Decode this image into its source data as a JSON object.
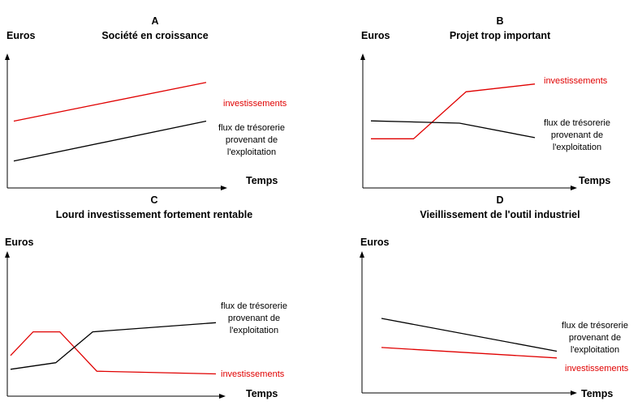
{
  "chart_data": [
    {
      "type": "line",
      "panel_letter": "A",
      "title": "Société en croissance",
      "ylabel": "Euros",
      "xlabel": "Temps",
      "series": [
        {
          "name": "investissements",
          "color": "#e00000",
          "x": [
            0,
            1
          ],
          "y": [
            0.62,
            0.98
          ]
        },
        {
          "name": "flux de trésorerie provenant de l'exploitation",
          "color": "#000000",
          "x": [
            0,
            1
          ],
          "y": [
            0.25,
            0.62
          ]
        }
      ],
      "labels": {
        "investissements": [
          "investissements"
        ],
        "flux": [
          "flux de trésorerie",
          "provenant de",
          "l'exploitation"
        ]
      }
    },
    {
      "type": "line",
      "panel_letter": "B",
      "title": "Projet trop important",
      "ylabel": "Euros",
      "xlabel": "Temps",
      "series": [
        {
          "name": "investissements",
          "color": "#e00000",
          "x": [
            0,
            0.26,
            0.58,
            1
          ],
          "y": [
            0.44,
            0.44,
            0.86,
            0.93
          ]
        },
        {
          "name": "flux de trésorerie provenant de l'exploitation",
          "color": "#000000",
          "x": [
            0,
            0.54,
            1
          ],
          "y": [
            0.6,
            0.58,
            0.45
          ]
        }
      ],
      "labels": {
        "investissements": [
          "investissements"
        ],
        "flux": [
          "flux de trésorerie",
          "provenant de",
          "l'exploitation"
        ]
      }
    },
    {
      "type": "line",
      "panel_letter": "C",
      "title": "Lourd investissement fortement rentable",
      "ylabel": "Euros",
      "xlabel": "Temps",
      "series": [
        {
          "name": "investissements",
          "color": "#e00000",
          "x": [
            0,
            0.11,
            0.24,
            0.42,
            1
          ],
          "y": [
            0.62,
            0.98,
            0.98,
            0.38,
            0.34
          ]
        },
        {
          "name": "flux de trésorerie provenant de l'exploitation",
          "color": "#000000",
          "x": [
            0,
            0.22,
            0.4,
            1
          ],
          "y": [
            0.41,
            0.51,
            0.98,
            1.12
          ]
        }
      ],
      "labels": {
        "investissements": [
          "investissements"
        ],
        "flux": [
          "flux de trésorerie",
          "provenant de",
          "l'exploitation"
        ]
      }
    },
    {
      "type": "line",
      "panel_letter": "D",
      "title": "Vieillissement de l'outil industriel",
      "ylabel": "Euros",
      "xlabel": "Temps",
      "series": [
        {
          "name": "flux de trésorerie provenant de l'exploitation",
          "color": "#000000",
          "x": [
            0,
            1
          ],
          "y": [
            1.0,
            0.56
          ]
        },
        {
          "name": "investissements",
          "color": "#e00000",
          "x": [
            0,
            1
          ],
          "y": [
            0.61,
            0.47
          ]
        }
      ],
      "labels": {
        "investissements": [
          "investissements"
        ],
        "flux": [
          "flux de trésorerie",
          "provenant de",
          "l'exploitation"
        ]
      }
    }
  ]
}
